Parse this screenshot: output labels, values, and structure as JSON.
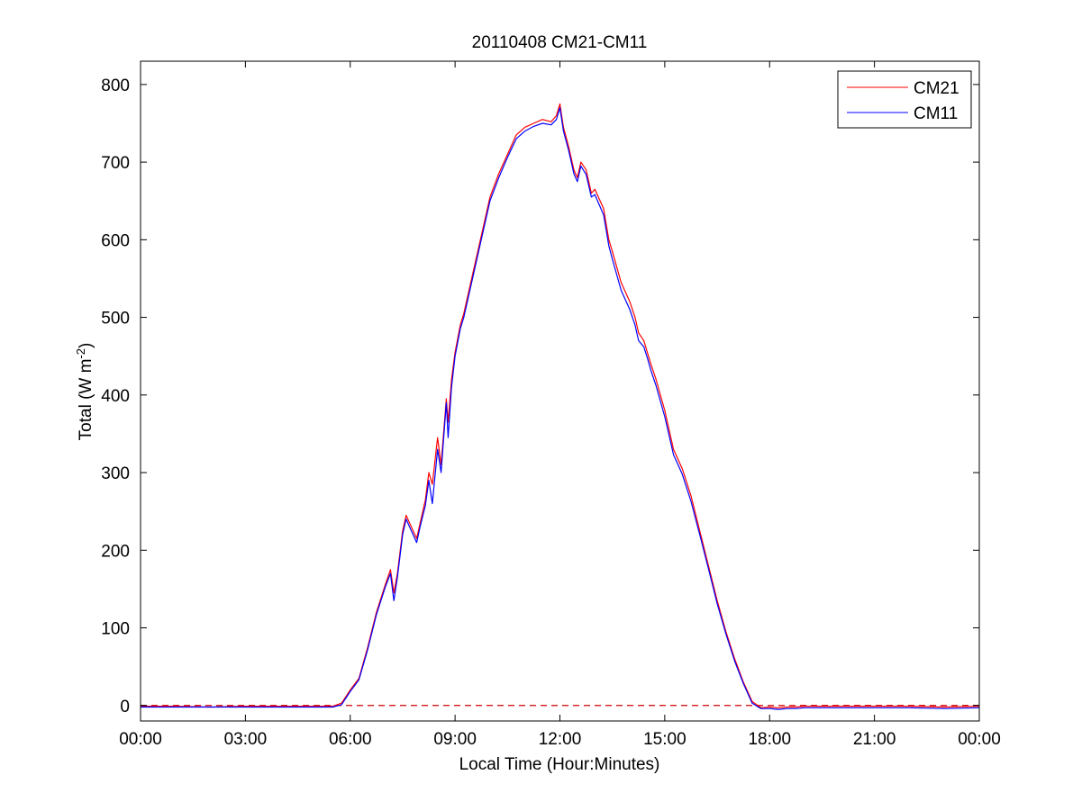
{
  "chart_data": {
    "type": "line",
    "title": "20110408 CM21-CM11",
    "xlabel": "Local Time (Hour:Minutes)",
    "ylabel": "Total (W m",
    "ylabel_superscript": "-2",
    "ylabel_suffix": ")",
    "xlim": [
      0,
      24
    ],
    "ylim": [
      -20,
      830
    ],
    "x_ticks": [
      0,
      3,
      6,
      9,
      12,
      15,
      18,
      21,
      24
    ],
    "x_tick_labels": [
      "00:00",
      "03:00",
      "06:00",
      "09:00",
      "12:00",
      "15:00",
      "18:00",
      "21:00",
      "00:00"
    ],
    "y_ticks": [
      0,
      100,
      200,
      300,
      400,
      500,
      600,
      700,
      800
    ],
    "y_tick_labels": [
      "0",
      "100",
      "200",
      "300",
      "400",
      "500",
      "600",
      "700",
      "800"
    ],
    "grid": false,
    "legend_position": "top-right",
    "reference_line": {
      "y": 0,
      "style": "dashed",
      "color": "#cc0000"
    },
    "series": [
      {
        "name": "CM21",
        "color": "#ff0000",
        "x": [
          0,
          1,
          2,
          3,
          4,
          5,
          5.5,
          5.75,
          6,
          6.25,
          6.5,
          6.75,
          7,
          7.15,
          7.25,
          7.35,
          7.5,
          7.6,
          7.75,
          7.9,
          8,
          8.15,
          8.25,
          8.35,
          8.5,
          8.6,
          8.75,
          8.8,
          8.9,
          9,
          9.15,
          9.25,
          9.5,
          9.75,
          10,
          10.25,
          10.5,
          10.75,
          11,
          11.25,
          11.5,
          11.75,
          11.9,
          12,
          12.1,
          12.25,
          12.4,
          12.5,
          12.6,
          12.75,
          12.9,
          13,
          13.25,
          13.4,
          13.5,
          13.75,
          14,
          14.15,
          14.25,
          14.4,
          14.5,
          14.6,
          14.75,
          15,
          15.25,
          15.5,
          15.75,
          16,
          16.25,
          16.5,
          16.75,
          17,
          17.25,
          17.5,
          17.75,
          18,
          18.25,
          18.5,
          18.75,
          19,
          20,
          21,
          22,
          23,
          24
        ],
        "y": [
          -1,
          -1,
          -2,
          -1,
          -1,
          -1,
          -1,
          3,
          20,
          35,
          75,
          120,
          155,
          175,
          145,
          170,
          225,
          245,
          230,
          215,
          235,
          265,
          300,
          285,
          345,
          310,
          395,
          365,
          420,
          455,
          490,
          505,
          555,
          605,
          655,
          685,
          710,
          735,
          745,
          750,
          755,
          752,
          760,
          775,
          745,
          720,
          690,
          680,
          700,
          690,
          660,
          665,
          640,
          600,
          585,
          545,
          520,
          500,
          480,
          470,
          455,
          440,
          420,
          380,
          330,
          305,
          270,
          225,
          180,
          135,
          95,
          60,
          30,
          5,
          -3,
          -2,
          -3,
          -2,
          -2,
          -1,
          -1,
          -1,
          -1,
          -2,
          -1
        ]
      },
      {
        "name": "CM11",
        "color": "#0000ff",
        "x": [
          0,
          1,
          2,
          3,
          4,
          5,
          5.5,
          5.75,
          6,
          6.25,
          6.5,
          6.75,
          7,
          7.15,
          7.25,
          7.35,
          7.5,
          7.6,
          7.75,
          7.9,
          8,
          8.15,
          8.25,
          8.35,
          8.5,
          8.6,
          8.75,
          8.8,
          8.9,
          9,
          9.15,
          9.25,
          9.5,
          9.75,
          10,
          10.25,
          10.5,
          10.75,
          11,
          11.25,
          11.5,
          11.75,
          11.9,
          12,
          12.1,
          12.25,
          12.4,
          12.5,
          12.6,
          12.75,
          12.9,
          13,
          13.25,
          13.4,
          13.5,
          13.75,
          14,
          14.15,
          14.25,
          14.4,
          14.5,
          14.6,
          14.75,
          15,
          15.25,
          15.5,
          15.75,
          16,
          16.25,
          16.5,
          16.75,
          17,
          17.25,
          17.5,
          17.75,
          18,
          18.25,
          18.5,
          18.75,
          19,
          20,
          21,
          22,
          23,
          24
        ],
        "y": [
          -2,
          -2,
          -2,
          -2,
          -2,
          -2,
          -2,
          1,
          18,
          33,
          72,
          117,
          152,
          170,
          135,
          165,
          220,
          240,
          225,
          210,
          230,
          258,
          290,
          260,
          330,
          300,
          390,
          345,
          410,
          450,
          485,
          500,
          550,
          600,
          650,
          680,
          706,
          730,
          740,
          746,
          750,
          748,
          755,
          770,
          740,
          715,
          685,
          675,
          695,
          684,
          655,
          658,
          632,
          592,
          575,
          535,
          510,
          490,
          470,
          462,
          448,
          432,
          412,
          372,
          323,
          298,
          263,
          220,
          176,
          131,
          92,
          57,
          28,
          3,
          -4,
          -4,
          -5,
          -4,
          -4,
          -3,
          -3,
          -3,
          -3,
          -4,
          -3
        ]
      }
    ]
  }
}
